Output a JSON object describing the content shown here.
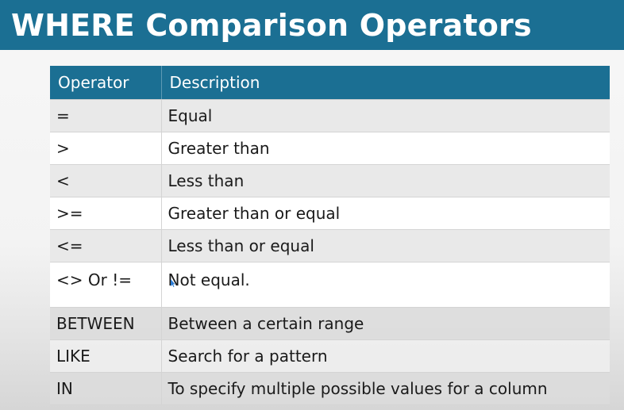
{
  "slide": {
    "title": "WHERE Comparison Operators",
    "accent_color": "#1b6f93"
  },
  "table": {
    "headers": [
      "Operator",
      "Description"
    ],
    "rows": [
      {
        "operator": "=",
        "description": "Equal"
      },
      {
        "operator": ">",
        "description": "Greater than"
      },
      {
        "operator": "<",
        "description": "Less than"
      },
      {
        "operator": ">=",
        "description": "Greater than or equal"
      },
      {
        "operator": "<=",
        "description": "Less than or equal"
      },
      {
        "operator": "<> Or !=",
        "description": "Not equal."
      },
      {
        "operator": "BETWEEN",
        "description": "Between a certain range"
      },
      {
        "operator": "LIKE",
        "description": "Search for a pattern"
      },
      {
        "operator": "IN",
        "description": "To specify multiple possible values for a column"
      }
    ]
  }
}
